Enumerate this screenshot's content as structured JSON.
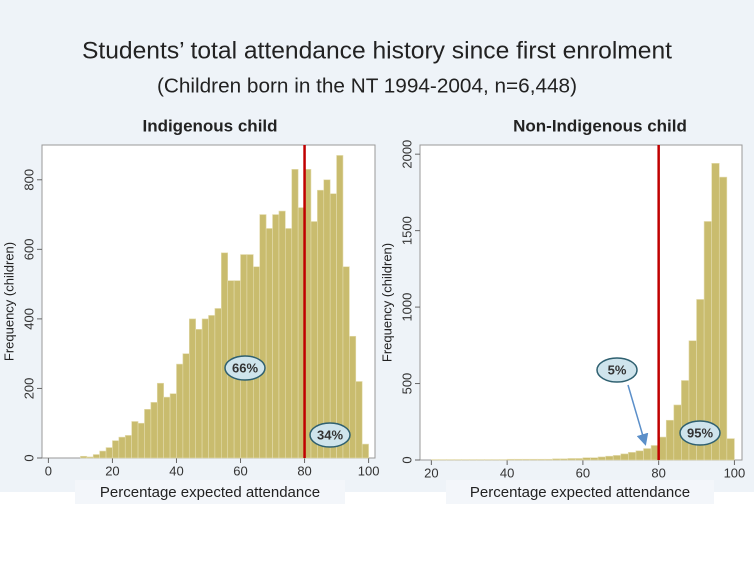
{
  "title": "Students’ total attendance history since first enrolment",
  "subtitle": "(Children born in the NT 1994-2004, n=6,448)",
  "chart_data": [
    {
      "type": "histogram",
      "title": "Indigenous child",
      "x_label": "Percentage expected attendance",
      "y_label": "Frequency (children)",
      "bins": [
        10,
        12,
        14,
        16,
        18,
        20,
        22,
        24,
        26,
        28,
        30,
        32,
        34,
        36,
        38,
        40,
        42,
        44,
        46,
        48,
        50,
        52,
        54,
        56,
        58,
        60,
        62,
        64,
        66,
        68,
        70,
        72,
        74,
        76,
        78,
        80,
        82,
        84,
        86,
        88,
        90,
        92,
        94,
        96,
        98,
        100
      ],
      "counts": [
        5,
        3,
        10,
        20,
        30,
        50,
        60,
        65,
        105,
        100,
        140,
        160,
        215,
        175,
        185,
        270,
        300,
        400,
        370,
        400,
        410,
        430,
        590,
        510,
        510,
        585,
        585,
        550,
        700,
        660,
        700,
        710,
        660,
        830,
        720,
        830,
        680,
        770,
        800,
        760,
        870,
        550,
        350,
        220,
        40
      ],
      "color": "#c9bc6e",
      "reference_line": 80,
      "reference_color": "#c00000",
      "annotations": [
        "66%",
        "34%"
      ],
      "xlim": [
        -2,
        102
      ],
      "xticks": [
        0,
        20,
        40,
        60,
        80,
        100
      ],
      "ylim": [
        0,
        900
      ],
      "yticks": [
        0,
        200,
        400,
        600,
        800
      ]
    },
    {
      "type": "histogram",
      "title": "Non-Indigenous child",
      "x_label": "Percentage expected attendance",
      "y_label": "Frequency (children)",
      "bins": [
        20,
        22,
        24,
        26,
        28,
        30,
        32,
        34,
        36,
        38,
        40,
        42,
        44,
        46,
        48,
        50,
        52,
        54,
        56,
        58,
        60,
        62,
        64,
        66,
        68,
        70,
        72,
        74,
        76,
        78,
        80,
        82,
        84,
        86,
        88,
        90,
        92,
        94,
        96,
        98,
        100
      ],
      "counts": [
        3,
        3,
        3,
        3,
        3,
        3,
        3,
        3,
        3,
        3,
        5,
        5,
        5,
        5,
        5,
        5,
        8,
        8,
        10,
        10,
        15,
        15,
        20,
        25,
        30,
        40,
        50,
        60,
        75,
        95,
        150,
        260,
        360,
        520,
        780,
        1050,
        1560,
        1940,
        1850,
        140
      ],
      "color": "#c9bc6e",
      "reference_line": 80,
      "reference_color": "#c00000",
      "annotations": [
        "5%",
        "95%"
      ],
      "xlim": [
        17,
        102
      ],
      "xticks": [
        20,
        40,
        60,
        80,
        100
      ],
      "ylim": [
        0,
        2060
      ],
      "yticks": [
        0,
        500,
        1000,
        1500,
        2000
      ]
    }
  ]
}
